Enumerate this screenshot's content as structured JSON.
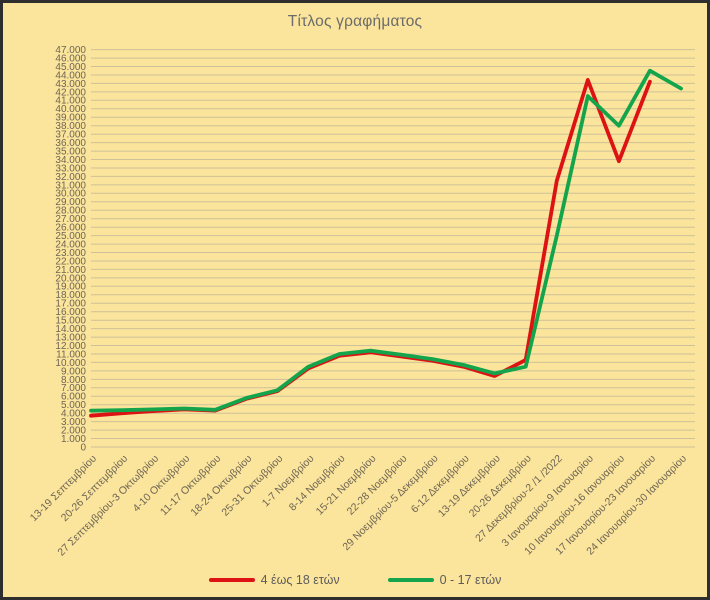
{
  "chart_data": {
    "type": "line",
    "title": "Τίτλος γραφήματος",
    "categories": [
      "13-19 Σεπτεμβρίου",
      "20-26 Σεπτεμβρίου",
      "27 Σεπτεμβρίου-3 Οκτωβρίου",
      "4-10 Οκτωβρίου",
      "11-17 Οκτωβρίου",
      "18-24 Οκτωβρίου",
      "25-31 Οκτωβρίου",
      "1-7 Νοεμβρίου",
      "8-14 Νοεμβρίου",
      "15-21 Νοεμβρίου",
      "22-28 Νοεμβρίου",
      "29 Νοεμβρίου-5 Δεκεμβρίου",
      "6-12 Δεκεμβρίου",
      "13-19 Δεκεμβρίου",
      "20-26 Δεκεμβρίου",
      "27 Δεκεμβρίου-2 /1 /2022",
      "3 Ιανουαρίου-9 Ιανουαρίου",
      "10 Ιανουαρίου-16 Ιανουαρίου",
      "17 Ιανουαρίου-23 Ιανουαρίου",
      "24 Ιανουαρίου-30 Ιανουαρίου"
    ],
    "series": [
      {
        "name": "4 έως 18 ετών",
        "color": "#DD1212",
        "values": [
          3700,
          4000,
          4250,
          4450,
          4300,
          5700,
          6600,
          9300,
          10800,
          11200,
          10700,
          10200,
          9500,
          8400,
          10300,
          31500,
          43400,
          33800,
          43200,
          null
        ]
      },
      {
        "name": "0 - 17 ετών",
        "color": "#14A44C",
        "values": [
          4300,
          4350,
          4450,
          4550,
          4400,
          5800,
          6700,
          9500,
          11000,
          11400,
          10900,
          10400,
          9700,
          8700,
          9500,
          25000,
          41500,
          38000,
          44500,
          42400
        ]
      }
    ],
    "y_axis": {
      "min": 0,
      "max": 47000,
      "step": 1000,
      "tick_labels": [
        "0",
        "1.000",
        "2.000",
        "3.000",
        "4.000",
        "5.000",
        "6.000",
        "7.000",
        "8.000",
        "9.000",
        "10.000",
        "11.000",
        "12.000",
        "13.000",
        "14.000",
        "15.000",
        "16.000",
        "17.000",
        "18.000",
        "19.000",
        "20.000",
        "21.000",
        "22.000",
        "23.000",
        "24.000",
        "25.000",
        "26.000",
        "27.000",
        "28.000",
        "29.000",
        "30.000",
        "31.000",
        "32.000",
        "33.000",
        "34.000",
        "35.000",
        "36.000",
        "37.000",
        "38.000",
        "39.000",
        "40.000",
        "41.000",
        "42.000",
        "43.000",
        "44.000",
        "45.000",
        "46.000",
        "47.000"
      ]
    },
    "grid": "horizontal",
    "legend_position": "bottom",
    "background_color": "#FBE49B",
    "axis_text_color": "#6d6555",
    "gridline_color": "rgba(150,150,150,0.45)"
  }
}
